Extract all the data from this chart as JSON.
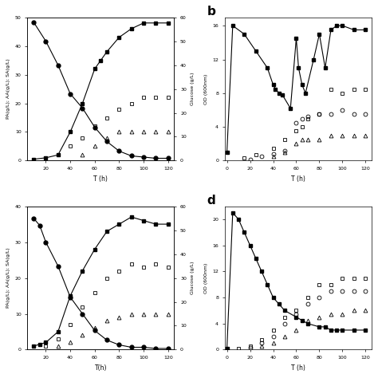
{
  "subplot_a": {
    "glucose_t": [
      10,
      20,
      30,
      40,
      50,
      60,
      70,
      80,
      90,
      100,
      110,
      120
    ],
    "glucose_v": [
      58,
      50,
      40,
      28,
      22,
      14,
      8,
      4,
      2,
      1.5,
      1,
      1
    ],
    "pa_t": [
      10,
      20,
      30,
      40,
      50,
      60,
      65,
      70,
      80,
      90,
      100,
      110,
      120
    ],
    "pa_v": [
      0.5,
      1,
      2,
      10,
      20,
      32,
      35,
      38,
      43,
      46,
      48,
      48,
      48
    ],
    "aa_t": [
      30,
      40,
      50,
      60,
      70,
      80,
      90,
      100,
      110,
      120
    ],
    "aa_v": [
      2,
      5,
      8,
      12,
      15,
      18,
      20,
      22,
      22,
      22
    ],
    "sa_t": [
      50,
      60,
      70,
      80,
      90,
      100,
      110,
      120
    ],
    "sa_v": [
      2,
      5,
      8,
      10,
      10,
      10,
      10,
      10
    ],
    "xlabel": "T (h)",
    "ylabel_left": "PA(g/L); AA(g/L); SA(g/L)",
    "ylabel_right": "Glucose (g/L)",
    "ylim_left": [
      0,
      50
    ],
    "ylim_right": [
      0,
      60
    ],
    "xlim": [
      5,
      125
    ]
  },
  "subplot_b": {
    "od_filled_t": [
      0,
      5,
      15,
      25,
      35,
      40,
      42,
      45,
      48,
      55,
      60,
      62,
      65,
      68,
      75,
      80,
      85,
      90,
      95,
      100,
      110,
      120
    ],
    "od_filled_v": [
      1,
      16,
      15,
      13,
      11,
      9,
      8.5,
      8,
      7.8,
      6.2,
      14.5,
      11,
      9,
      8,
      12,
      15,
      11,
      15.5,
      16,
      16,
      15.5,
      15.5
    ],
    "sq_open_t": [
      15,
      25,
      40,
      50,
      60,
      65,
      70,
      80,
      90,
      100,
      110,
      120
    ],
    "sq_open_v": [
      0.3,
      0.7,
      1.5,
      2.5,
      3.5,
      4,
      5,
      5.5,
      8.5,
      8,
      8.5,
      8.5
    ],
    "circle_open_t": [
      20,
      30,
      40,
      50,
      60,
      65,
      70,
      80,
      90,
      100,
      110,
      120
    ],
    "circle_open_v": [
      0.1,
      0.5,
      0.8,
      1.2,
      4.5,
      5,
      5.2,
      5.5,
      5.5,
      6,
      5.5,
      5.5
    ],
    "tri_open_t": [
      40,
      50,
      60,
      65,
      70,
      80,
      90,
      100,
      110,
      120
    ],
    "tri_open_v": [
      0.5,
      1,
      2,
      2.5,
      2.5,
      2.5,
      3,
      3,
      3,
      3
    ],
    "xlabel": "T (h)",
    "ylabel_left": "OD (600nm)",
    "ylim_left": [
      0,
      17
    ],
    "xlim": [
      -2,
      125
    ],
    "label": "b"
  },
  "subplot_c": {
    "glucose_t": [
      10,
      15,
      20,
      30,
      40,
      50,
      60,
      70,
      80,
      90,
      100,
      110,
      120
    ],
    "glucose_v": [
      55,
      52,
      45,
      35,
      22,
      15,
      8,
      4,
      2,
      1,
      1,
      0.5,
      0.5
    ],
    "pa_t": [
      10,
      15,
      20,
      30,
      40,
      50,
      60,
      70,
      80,
      90,
      100,
      110,
      120
    ],
    "pa_v": [
      1,
      1.5,
      2,
      5,
      15,
      22,
      28,
      33,
      35,
      37,
      36,
      35,
      35
    ],
    "aa_t": [
      20,
      30,
      40,
      50,
      60,
      70,
      80,
      90,
      100,
      110,
      120
    ],
    "aa_v": [
      1,
      3,
      7,
      12,
      16,
      20,
      22,
      24,
      23,
      24,
      23
    ],
    "sa_t": [
      30,
      40,
      50,
      60,
      70,
      80,
      90,
      100,
      110,
      120
    ],
    "sa_v": [
      1,
      2,
      4,
      6,
      8,
      9,
      10,
      10,
      10,
      10
    ],
    "xlabel": "T(h)",
    "ylabel_left": "PA(g/L); AA(g/L); SA(g/L)",
    "ylabel_right": "Glucose (g/L)",
    "ylim_left": [
      0,
      40
    ],
    "ylim_right": [
      0,
      60
    ],
    "xlim": [
      5,
      125
    ]
  },
  "subplot_d": {
    "od_filled_t": [
      0,
      5,
      10,
      15,
      20,
      25,
      30,
      35,
      40,
      45,
      50,
      60,
      65,
      70,
      80,
      85,
      90,
      95,
      100,
      110,
      120
    ],
    "od_filled_v": [
      0.2,
      21,
      20,
      18,
      16,
      14,
      12,
      10,
      8,
      7,
      6,
      5,
      4.5,
      4,
      3.5,
      3.5,
      3,
      3,
      3,
      3,
      3
    ],
    "sq_open_t": [
      10,
      20,
      30,
      40,
      50,
      60,
      70,
      80,
      90,
      100,
      110,
      120
    ],
    "sq_open_v": [
      0.2,
      0.5,
      1.5,
      3,
      5,
      6,
      8,
      10,
      10,
      11,
      11,
      11
    ],
    "circle_open_t": [
      20,
      30,
      40,
      50,
      60,
      70,
      80,
      90,
      100,
      110,
      120
    ],
    "circle_open_v": [
      0.3,
      1,
      2,
      4,
      5.5,
      7,
      8,
      9,
      9,
      9,
      9
    ],
    "tri_open_t": [
      30,
      40,
      50,
      60,
      70,
      80,
      90,
      100,
      110,
      120
    ],
    "tri_open_v": [
      0.5,
      1,
      2,
      3,
      4.5,
      5,
      5.5,
      5.5,
      6,
      6
    ],
    "xlabel": "T (h)",
    "ylabel_left": "OD (600nm)",
    "ylim_left": [
      0,
      22
    ],
    "xlim": [
      -2,
      125
    ],
    "label": "d"
  }
}
